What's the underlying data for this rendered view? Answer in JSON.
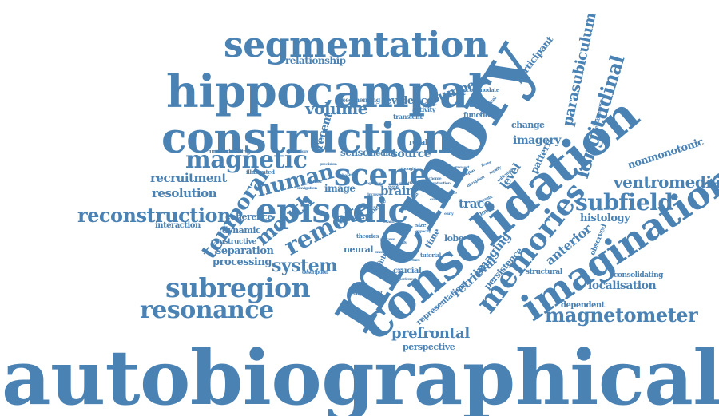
{
  "word_color": "#4a82b4",
  "background": "#ffffff",
  "words": [
    {
      "key": "autobiographical",
      "text": "autobiographical"
    },
    {
      "key": "memory",
      "text": "memory"
    },
    {
      "key": "consolidation",
      "text": "consolidation"
    },
    {
      "key": "hippocampal",
      "text": "hippocampal"
    },
    {
      "key": "construction",
      "text": "construction"
    },
    {
      "key": "segmentation",
      "text": "segmentation"
    },
    {
      "key": "imagination",
      "text": "imagination"
    },
    {
      "key": "memories",
      "text": "memories"
    },
    {
      "key": "episodic",
      "text": "episodic"
    },
    {
      "key": "scene",
      "text": "scene"
    },
    {
      "key": "magnetic",
      "text": "magnetic"
    },
    {
      "key": "subregion",
      "text": "subregion"
    },
    {
      "key": "resonance",
      "text": "resonance"
    },
    {
      "key": "reconstruction",
      "text": "reconstruction"
    },
    {
      "key": "remote",
      "text": "remote"
    },
    {
      "key": "temporal",
      "text": "temporal"
    },
    {
      "key": "human",
      "text": "human"
    },
    {
      "key": "mouth",
      "text": "mouth"
    },
    {
      "key": "system",
      "text": "system"
    },
    {
      "key": "magnetometer",
      "text": "magnetometer"
    },
    {
      "key": "subfield",
      "text": "subfield"
    },
    {
      "key": "ventromedial",
      "text": "ventromedial"
    },
    {
      "key": "longitudinal",
      "text": "longitudinal"
    },
    {
      "key": "parasubiculum",
      "text": "parasubiculum"
    },
    {
      "key": "volume",
      "text": "volume"
    },
    {
      "key": "recruitment",
      "text": "recruitment"
    },
    {
      "key": "resolution",
      "text": "resolution"
    },
    {
      "key": "prefrontal",
      "text": "prefrontal"
    },
    {
      "key": "imaging",
      "text": "imaging"
    },
    {
      "key": "retrieval",
      "text": "retrieval"
    },
    {
      "key": "anterior",
      "text": "anterior"
    },
    {
      "key": "localisation",
      "text": "localisation"
    },
    {
      "key": "histology",
      "text": "histology"
    },
    {
      "key": "nonmonotonic",
      "text": "nonmonotonic"
    },
    {
      "key": "imagery",
      "text": "imagery"
    },
    {
      "key": "pumped",
      "text": "pumped"
    },
    {
      "key": "evidence",
      "text": "evidence"
    },
    {
      "key": "relationship",
      "text": "relationship"
    },
    {
      "key": "participant",
      "text": "participant"
    },
    {
      "key": "source",
      "text": "source"
    },
    {
      "key": "sensor",
      "text": "sensor"
    },
    {
      "key": "recent",
      "text": "recent"
    },
    {
      "key": "image",
      "text": "image"
    },
    {
      "key": "brain",
      "text": "brain"
    },
    {
      "key": "trace",
      "text": "trace"
    },
    {
      "key": "level",
      "text": "level"
    },
    {
      "key": "pattern",
      "text": "pattern"
    },
    {
      "key": "change",
      "text": "change"
    },
    {
      "key": "separation",
      "text": "separation"
    },
    {
      "key": "processing",
      "text": "processing"
    },
    {
      "key": "neural",
      "text": "neural"
    },
    {
      "key": "power",
      "text": "power"
    },
    {
      "key": "coherence",
      "text": "coherence"
    },
    {
      "key": "dynamic",
      "text": "dynamic"
    },
    {
      "key": "interaction",
      "text": "interaction"
    },
    {
      "key": "constructive",
      "text": "constructive"
    },
    {
      "key": "perspective",
      "text": "perspective"
    },
    {
      "key": "representation",
      "text": "representation"
    },
    {
      "key": "persistence",
      "text": "persistence"
    },
    {
      "key": "crucial",
      "text": "crucial"
    },
    {
      "key": "lobe",
      "text": "lobe"
    },
    {
      "key": "time",
      "text": "time"
    },
    {
      "key": "structural",
      "text": "structural"
    },
    {
      "key": "observed",
      "text": "observed"
    },
    {
      "key": "dependent",
      "text": "dependent"
    },
    {
      "key": "consolidating",
      "text": "consolidating"
    },
    {
      "key": "functional",
      "text": "functional"
    },
    {
      "key": "recall",
      "text": "recall"
    },
    {
      "key": "medial",
      "text": "medial"
    },
    {
      "key": "segmenting",
      "text": "segmenting"
    },
    {
      "key": "activity",
      "text": "activity"
    },
    {
      "key": "transient",
      "text": "transient"
    },
    {
      "key": "accommodate",
      "text": "accommodate"
    },
    {
      "key": "understanding",
      "text": "understanding"
    },
    {
      "key": "illustrated",
      "text": "illustrated"
    },
    {
      "key": "future",
      "text": "future"
    },
    {
      "key": "novel",
      "text": "novel"
    },
    {
      "key": "unique",
      "text": "unique"
    },
    {
      "key": "theories",
      "text": "theories"
    },
    {
      "key": "remoteness",
      "text": "remoteness"
    },
    {
      "key": "traditional",
      "text": "traditional"
    },
    {
      "key": "size",
      "text": "size"
    },
    {
      "key": "tutorial",
      "text": "tutorial"
    },
    {
      "key": "engagement",
      "text": "engagement"
    },
    {
      "key": "description",
      "text": "description"
    },
    {
      "key": "technology",
      "text": "technology"
    },
    {
      "key": "navigation",
      "text": "navigation"
    },
    {
      "key": "method",
      "text": "method"
    },
    {
      "key": "cognitive",
      "text": "cognitive"
    },
    {
      "key": "experience",
      "text": "experience"
    },
    {
      "key": "capacity",
      "text": "capacity"
    },
    {
      "key": "response",
      "text": "response"
    },
    {
      "key": "scheme",
      "text": "scheme"
    },
    {
      "key": "greatest",
      "text": "greatest"
    },
    {
      "key": "critique",
      "text": "critique"
    },
    {
      "key": "subiculum",
      "text": "subiculum"
    },
    {
      "key": "month",
      "text": "month"
    },
    {
      "key": "event",
      "text": "event"
    },
    {
      "key": "detail",
      "text": "detail"
    },
    {
      "key": "useful",
      "text": "useful"
    },
    {
      "key": "reach",
      "text": "reach"
    },
    {
      "key": "healthy",
      "text": "healthy"
    },
    {
      "key": "precision",
      "text": "precision"
    },
    {
      "key": "rapidly",
      "text": "rapidly"
    },
    {
      "key": "disruption",
      "text": "disruption"
    },
    {
      "key": "cortex",
      "text": "cortex"
    },
    {
      "key": "thought",
      "text": "thought"
    },
    {
      "key": "increase",
      "text": "increase"
    },
    {
      "key": "maximum",
      "text": "maximum"
    },
    {
      "key": "initiation",
      "text": "initiation"
    },
    {
      "key": "drive",
      "text": "drive"
    },
    {
      "key": "retention",
      "text": "retention"
    },
    {
      "key": "semantic",
      "text": "semantic"
    },
    {
      "key": "early",
      "text": "early"
    },
    {
      "key": "daily",
      "text": "daily"
    },
    {
      "key": "process",
      "text": "process"
    },
    {
      "key": "structure",
      "text": "structure"
    },
    {
      "key": "fewer",
      "text": "fewer"
    },
    {
      "key": "map",
      "text": "map"
    }
  ]
}
